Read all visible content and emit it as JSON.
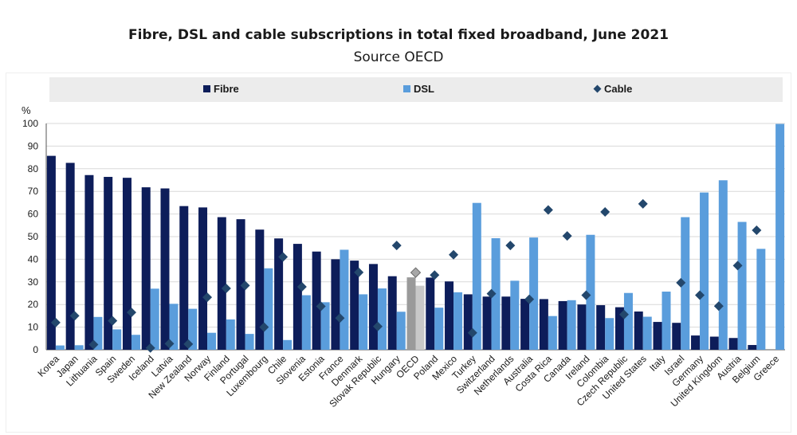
{
  "title": "Fibre, DSL and cable subscriptions in total fixed broadband, June 2021",
  "subtitle": "Source OECD",
  "colors": {
    "fibre": "#0d1d5a",
    "dsl": "#5a9ddc",
    "cable": "#23476c",
    "oecd_fibre": "#9a9a9a",
    "oecd_dsl": "#c8c8c8",
    "oecd_cable": "#a7a7a7",
    "legend_bg": "#ececec",
    "grid": "#d9d9d9"
  },
  "chart_data": {
    "type": "bar",
    "ylabel": "%",
    "ylim": [
      0,
      100
    ],
    "yticks": [
      0,
      10,
      20,
      30,
      40,
      50,
      60,
      70,
      80,
      90,
      100
    ],
    "legend_position": "top",
    "categories": [
      "Korea",
      "Japan",
      "Lithuania",
      "Spain",
      "Sweden",
      "Iceland",
      "Latvia",
      "New Zealand",
      "Norway",
      "Finland",
      "Portugal",
      "Luxembourg",
      "Chile",
      "Slovenia",
      "Estonia",
      "France",
      "Denmark",
      "Slovak Republic",
      "Hungary",
      "OECD",
      "Poland",
      "Mexico",
      "Turkey",
      "Switzerland",
      "Netherlands",
      "Australia",
      "Costa Rica",
      "Canada",
      "Ireland",
      "Colombia",
      "Czech Republic",
      "United States",
      "Italy",
      "Israel",
      "Germany",
      "United Kingdom",
      "Austria",
      "Belgium",
      "Greece"
    ],
    "highlight": "OECD",
    "series": [
      {
        "name": "Fibre",
        "kind": "bar",
        "values": [
          85.7,
          82.6,
          77.2,
          76.4,
          76.0,
          71.8,
          71.3,
          63.5,
          62.9,
          58.6,
          57.7,
          53.1,
          49.2,
          46.8,
          43.4,
          40.0,
          39.4,
          37.9,
          32.5,
          32.0,
          31.9,
          30.2,
          24.5,
          23.5,
          23.5,
          22.5,
          22.4,
          21.5,
          20.0,
          19.7,
          18.8,
          16.9,
          12.3,
          11.9,
          6.3,
          5.8,
          5.2,
          2.1,
          0.0
        ]
      },
      {
        "name": "DSL",
        "kind": "bar",
        "values": [
          1.9,
          2.0,
          14.5,
          9.0,
          6.6,
          27.0,
          20.3,
          18.1,
          7.5,
          13.4,
          7.0,
          36.0,
          4.3,
          24.1,
          21.0,
          44.2,
          24.5,
          27.1,
          16.8,
          28.3,
          18.6,
          25.4,
          64.9,
          49.3,
          30.5,
          49.6,
          14.9,
          21.9,
          50.8,
          14.0,
          25.1,
          14.6,
          25.7,
          58.6,
          69.5,
          74.9,
          56.5,
          44.6,
          99.8
        ]
      },
      {
        "name": "Cable",
        "kind": "marker",
        "values": [
          12.0,
          15.0,
          2.3,
          12.8,
          16.5,
          0.8,
          2.7,
          2.5,
          23.2,
          27.1,
          28.4,
          10.0,
          41.0,
          27.8,
          19.2,
          14.0,
          34.2,
          10.3,
          46.1,
          34.1,
          33.0,
          42.0,
          7.5,
          24.8,
          46.1,
          22.3,
          61.8,
          50.3,
          24.1,
          60.9,
          15.6,
          64.5,
          null,
          29.6,
          24.1,
          19.3,
          37.2,
          52.8,
          null
        ]
      }
    ]
  }
}
